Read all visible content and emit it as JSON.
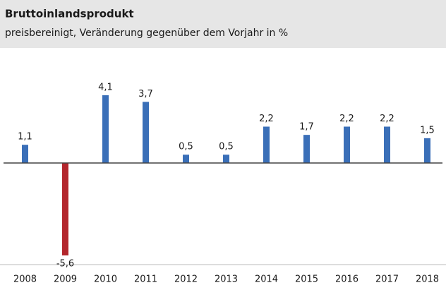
{
  "chart_data": {
    "type": "bar",
    "title": "Bruttoinlandsprodukt",
    "subtitle": "preisbereinigt, Veränderung gegenüber dem Vorjahr in %",
    "categories": [
      "2008",
      "2009",
      "2010",
      "2011",
      "2012",
      "2013",
      "2014",
      "2015",
      "2016",
      "2017",
      "2018"
    ],
    "values": [
      1.1,
      -5.6,
      4.1,
      3.7,
      0.5,
      0.5,
      2.2,
      1.7,
      2.2,
      2.2,
      1.5
    ],
    "value_labels": [
      "1,1",
      "-5,6",
      "4,1",
      "3,7",
      "0,5",
      "0,5",
      "2,2",
      "1,7",
      "2,2",
      "2,2",
      "1,5"
    ],
    "color": "#3a6fb8",
    "negative_color": "#b3262c"
  }
}
